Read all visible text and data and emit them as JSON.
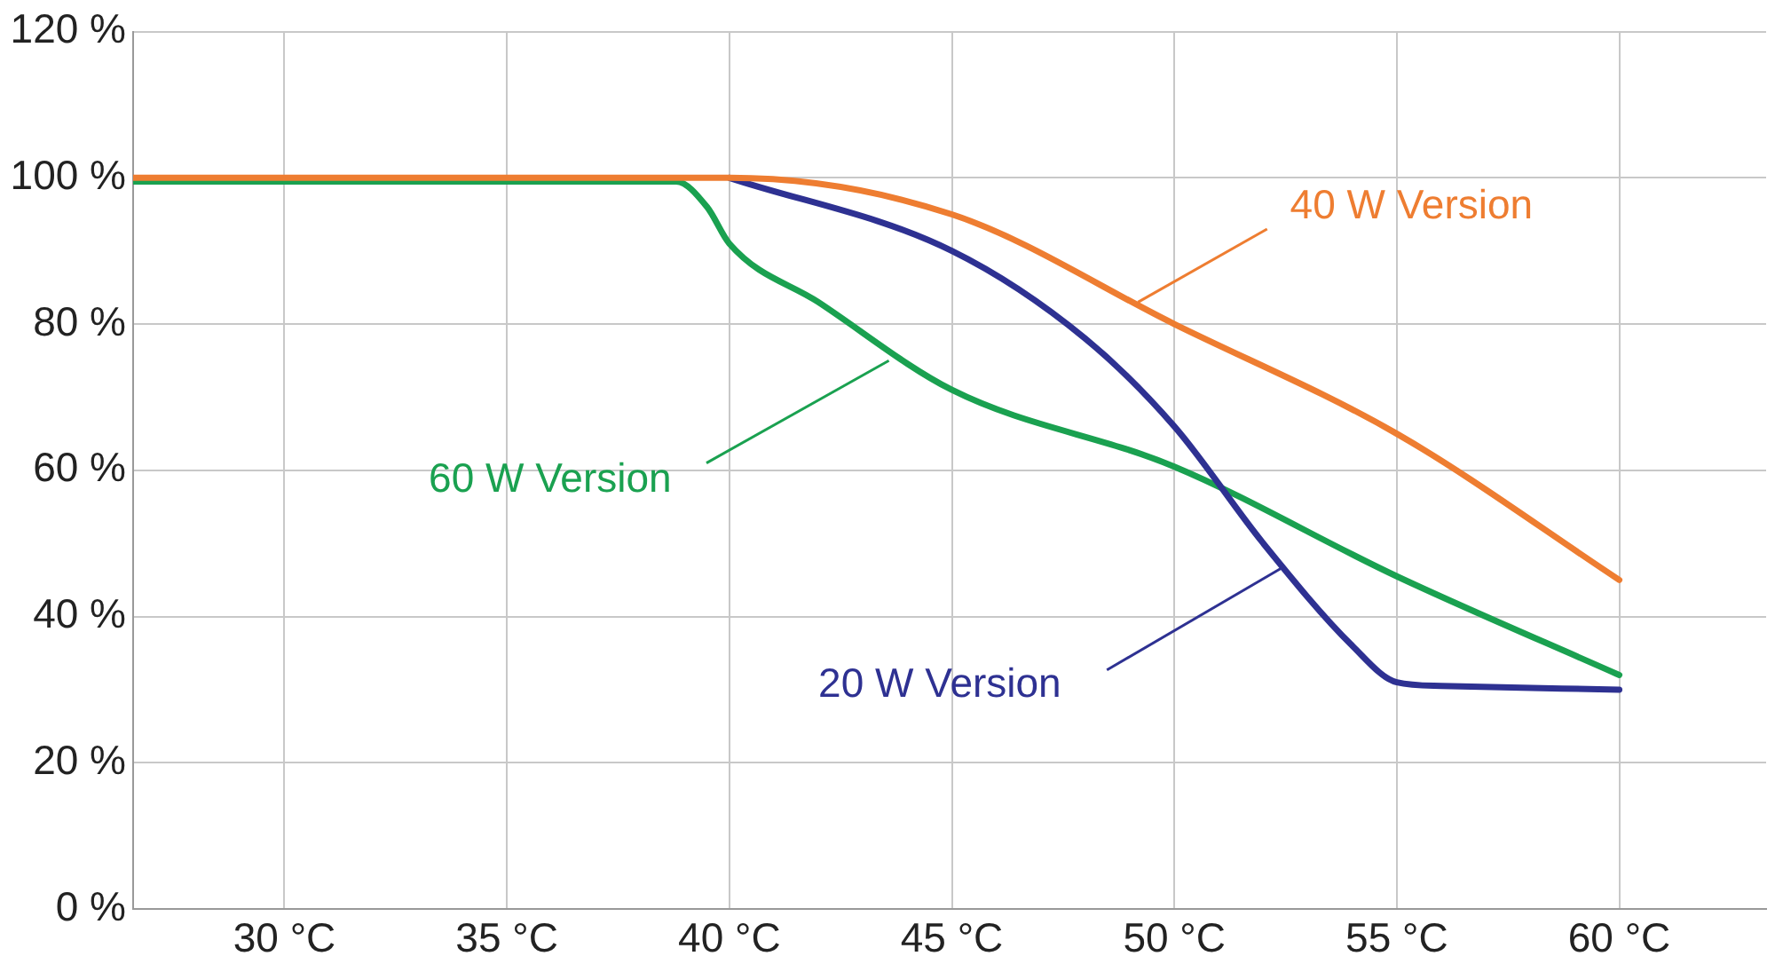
{
  "chart_data": {
    "type": "line",
    "xlim": [
      26.6,
      63.3
    ],
    "ylim": [
      0,
      120
    ],
    "xticks": [
      {
        "value": 30,
        "label": "30 °C"
      },
      {
        "value": 35,
        "label": "35 °C"
      },
      {
        "value": 40,
        "label": "40 °C"
      },
      {
        "value": 45,
        "label": "45 °C"
      },
      {
        "value": 50,
        "label": "50 °C"
      },
      {
        "value": 55,
        "label": "55 °C"
      },
      {
        "value": 60,
        "label": "60 °C"
      }
    ],
    "yticks": [
      {
        "value": 0,
        "label": "0 %"
      },
      {
        "value": 20,
        "label": "20 %"
      },
      {
        "value": 40,
        "label": "40 %"
      },
      {
        "value": 60,
        "label": "60 %"
      },
      {
        "value": 80,
        "label": "80 %"
      },
      {
        "value": 100,
        "label": "100 %"
      },
      {
        "value": 120,
        "label": "120 %"
      }
    ],
    "grid": true,
    "legend": false,
    "marker": "none",
    "line_style": "solid",
    "series": [
      {
        "name": "40 W Version",
        "color": "#ee7d31",
        "x": [
          26.6,
          40,
          45,
          50,
          55,
          60
        ],
        "values": [
          100,
          100,
          95,
          80,
          65,
          45
        ]
      },
      {
        "name": "20 W Version",
        "color": "#2e3192",
        "x": [
          40,
          45,
          48,
          50,
          52,
          54,
          55,
          56,
          60
        ],
        "values": [
          100,
          90,
          78,
          66,
          50,
          36,
          31,
          30.5,
          30
        ]
      },
      {
        "name": "60 W Version",
        "color": "#1aa150",
        "x": [
          26.6,
          38.8,
          39.5,
          40,
          42,
          45,
          50,
          55,
          60
        ],
        "values": [
          99.5,
          99.5,
          96,
          91,
          83,
          71,
          60.5,
          45.5,
          32
        ]
      }
    ]
  }
}
